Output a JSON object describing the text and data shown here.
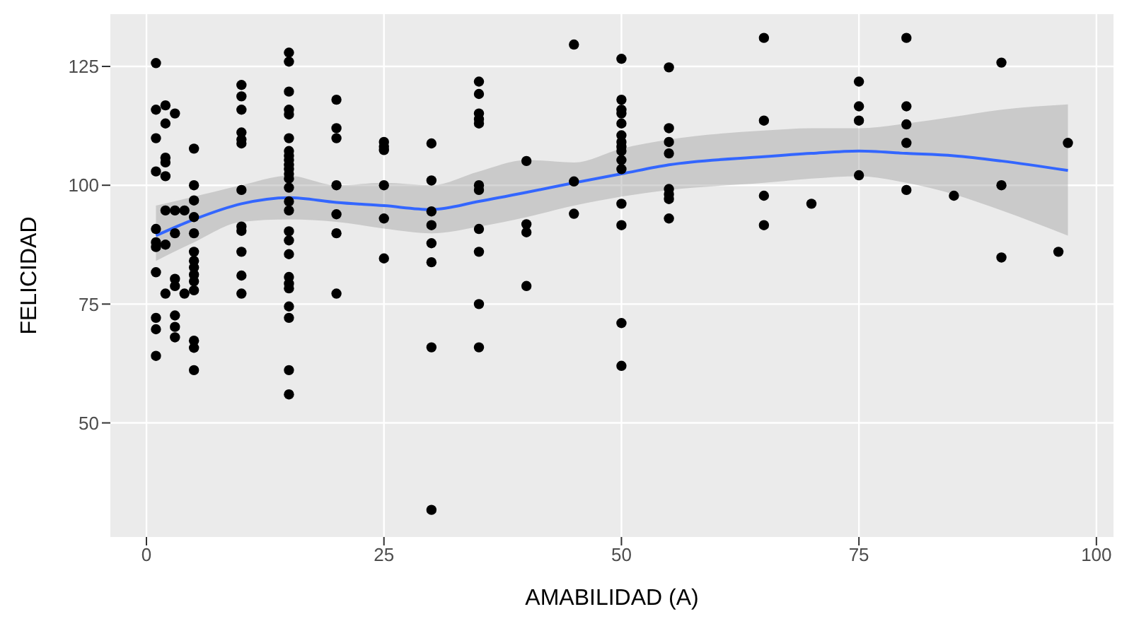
{
  "chart_data": {
    "type": "scatter",
    "xlabel": "AMABILIDAD (A)",
    "ylabel": "FELICIDAD",
    "xlim": [
      -3.8,
      101.8
    ],
    "xticks": [
      0,
      25,
      50,
      75,
      100
    ],
    "ylim": [
      26,
      136
    ],
    "yticks": [
      50,
      75,
      100,
      125
    ],
    "grid": true,
    "series": [
      {
        "marker": "circle",
        "color": "#000000",
        "x": [
          1,
          1,
          1,
          1,
          1,
          1,
          1,
          1,
          1,
          1,
          1,
          2,
          2,
          2,
          2,
          2,
          2,
          2,
          2,
          3,
          3,
          3,
          3,
          3,
          3,
          3,
          3,
          4,
          4,
          5,
          5,
          5,
          5,
          5,
          5,
          5,
          5,
          5,
          5,
          5,
          5,
          5,
          5,
          10,
          10,
          10,
          10,
          10,
          10,
          10,
          10,
          10,
          10,
          10,
          10,
          15,
          15,
          15,
          15,
          15,
          15,
          15,
          15,
          15,
          15,
          15,
          15,
          15,
          15,
          15,
          15,
          15,
          15,
          15,
          15,
          15,
          15,
          15,
          15,
          15,
          15,
          20,
          20,
          20,
          20,
          20,
          20,
          20,
          25,
          25,
          25,
          25,
          25,
          25,
          30,
          30,
          30,
          30,
          30,
          30,
          30,
          30,
          35,
          35,
          35,
          35,
          35,
          35,
          35,
          35,
          35,
          35,
          35,
          40,
          40,
          40,
          40,
          45,
          45,
          45,
          50,
          50,
          50,
          50,
          50,
          50,
          50,
          50,
          50,
          50,
          50,
          50,
          50,
          50,
          50,
          55,
          55,
          55,
          55,
          55,
          55,
          55,
          55,
          65,
          65,
          65,
          65,
          70,
          75,
          75,
          75,
          75,
          80,
          80,
          80,
          80,
          80,
          85,
          90,
          90,
          90,
          96,
          97
        ],
        "values": [
          125.7,
          115.9,
          109.9,
          102.9,
          90.8,
          88,
          87,
          81.7,
          72.1,
          69.7,
          64.1,
          116.8,
          113,
          105.8,
          104.8,
          101.9,
          94.7,
          87.5,
          77.2,
          115.1,
          94.7,
          89.9,
          80.3,
          78.8,
          72.6,
          70.2,
          68,
          94.7,
          77.2,
          107.7,
          100,
          96.8,
          93.3,
          89.9,
          86,
          84.1,
          82.7,
          81.2,
          79.8,
          77.9,
          67.3,
          65.8,
          61.1,
          121.1,
          118.7,
          115.9,
          111.1,
          109.6,
          108.8,
          99,
          91.3,
          90.4,
          86,
          81,
          77.2,
          127.9,
          126,
          119.7,
          115.9,
          114.9,
          109.9,
          107.2,
          106.2,
          105.3,
          104.3,
          103.4,
          102.4,
          101.4,
          99.5,
          96.6,
          94.7,
          90.3,
          88.4,
          85.5,
          80.7,
          79.3,
          78.3,
          74.5,
          72.1,
          61.1,
          56,
          118,
          112,
          109.9,
          100,
          93.9,
          89.9,
          77.2,
          109.1,
          108.1,
          107.4,
          100,
          93,
          84.6,
          108.8,
          101,
          94.5,
          91.6,
          87.8,
          83.8,
          65.9,
          31.7,
          121.8,
          119.2,
          115.1,
          113.9,
          113,
          100,
          99,
          90.8,
          86,
          75,
          65.9,
          105.1,
          91.8,
          90.1,
          78.8,
          129.6,
          100.8,
          94,
          126.6,
          118,
          115.9,
          115.1,
          113,
          110.5,
          109.1,
          108.1,
          107.2,
          105.3,
          103.4,
          96.1,
          91.6,
          71,
          62,
          124.8,
          112,
          109.1,
          106.7,
          99.2,
          98.1,
          97.1,
          93,
          131,
          113.6,
          97.8,
          91.6,
          96.1,
          121.8,
          116.6,
          113.6,
          102.1,
          131,
          116.6,
          112.8,
          108.9,
          99,
          97.8,
          125.8,
          100,
          84.8,
          86,
          108.9
        ]
      },
      {
        "type": "line",
        "marker": "none",
        "color": "#3366ff",
        "x": [
          1,
          5,
          10,
          15,
          20,
          25,
          30,
          35,
          40,
          45,
          50,
          55,
          65,
          70,
          75,
          80,
          85,
          90,
          97
        ],
        "values": [
          89.4,
          92.8,
          96.1,
          97.4,
          96.4,
          95.7,
          94.9,
          96.6,
          98.5,
          100.5,
          102.4,
          104.3,
          106,
          106.7,
          107.2,
          106.7,
          106.2,
          105.1,
          103.1
        ],
        "lower": [
          84.1,
          88,
          92.3,
          92.8,
          92.3,
          90.9,
          89.9,
          91.3,
          93.3,
          95.7,
          97.6,
          99,
          100.5,
          101.4,
          101.9,
          100.5,
          98.1,
          94.7,
          89.4
        ],
        "upper": [
          95.7,
          97.6,
          100,
          102,
          100,
          100.5,
          100,
          102.9,
          105.3,
          104.8,
          107.7,
          109.6,
          111.5,
          112,
          112,
          113,
          114.4,
          115.9,
          117
        ]
      }
    ]
  }
}
